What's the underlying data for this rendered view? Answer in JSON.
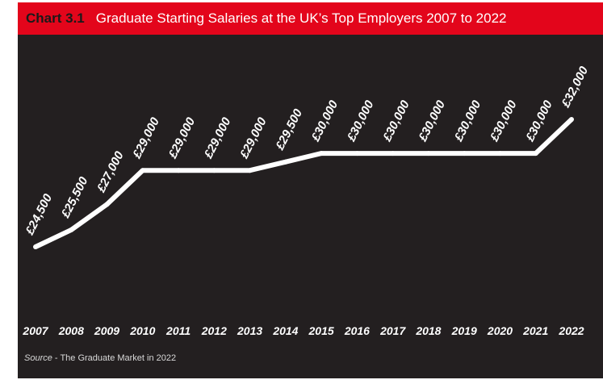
{
  "header": {
    "chart_number": "Chart 3.1",
    "title": "Graduate Starting Salaries at the UK’s Top Employers 2007 to 2022"
  },
  "source": {
    "label": "Source",
    "separator": " - ",
    "text": "The Graduate Market in 2022"
  },
  "colors": {
    "header_bg": "#e3051b",
    "panel_bg": "#231f20",
    "line": "#ffffff",
    "text": "#ffffff"
  },
  "chart_data": {
    "type": "line",
    "title": "Graduate Starting Salaries at the UK’s Top Employers 2007 to 2022",
    "xlabel": "",
    "ylabel": "",
    "grid": false,
    "legend": "none",
    "ylim": [
      20000,
      34000
    ],
    "categories": [
      "2007",
      "2008",
      "2009",
      "2010",
      "2011",
      "2012",
      "2013",
      "2014",
      "2015",
      "2016",
      "2017",
      "2018",
      "2019",
      "2020",
      "2021",
      "2022"
    ],
    "values": [
      24500,
      25500,
      27000,
      29000,
      29000,
      29000,
      29000,
      29500,
      30000,
      30000,
      30000,
      30000,
      30000,
      30000,
      30000,
      32000
    ],
    "data_labels": [
      "£24,500",
      "£25,500",
      "£27,000",
      "£29,000",
      "£29,000",
      "£29,000",
      "£29,000",
      "£29,500",
      "£30,000",
      "£30,000",
      "£30,000",
      "£30,000",
      "£30,000",
      "£30,000",
      "£30,000",
      "£32,000"
    ]
  }
}
